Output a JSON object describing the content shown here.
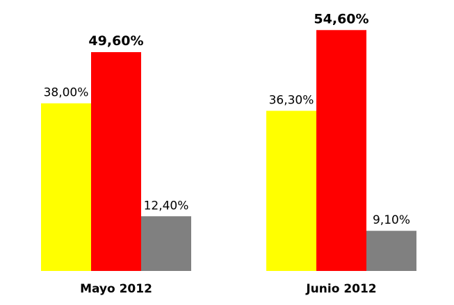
{
  "chart_data": {
    "type": "bar",
    "categories": [
      "Mayo 2012",
      "Junio 2012"
    ],
    "series": [
      {
        "values": [
          38.0,
          36.3
        ],
        "labels": [
          "38,00%",
          "36,30%"
        ],
        "color": "#ffff00",
        "label_bold": false
      },
      {
        "values": [
          49.6,
          54.6
        ],
        "labels": [
          "49,60%",
          "54,60%"
        ],
        "color": "#ff0000",
        "label_bold": true
      },
      {
        "values": [
          12.4,
          9.1
        ],
        "labels": [
          "12,40%",
          "9,10%"
        ],
        "color": "#808080",
        "label_bold": false
      }
    ],
    "ylim": [
      0,
      60
    ],
    "grid": false,
    "legend": "none"
  }
}
